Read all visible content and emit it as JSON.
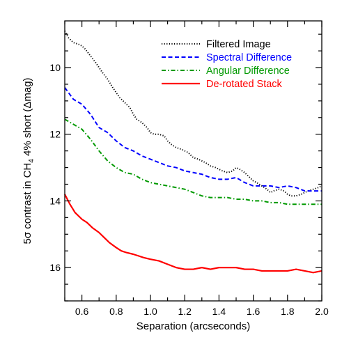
{
  "chart_data": {
    "type": "line",
    "xlabel": "Separation (arcseconds)",
    "ylabel": {
      "prefix": "5σ contrast in CH",
      "subscript": "4",
      "suffix": " 4% short (Δmag)"
    },
    "xlim": [
      0.5,
      2.0
    ],
    "ylim": [
      17.0,
      8.6
    ],
    "y_inverted": true,
    "xticks": [
      0.6,
      0.8,
      1.0,
      1.2,
      1.4,
      1.6,
      1.8,
      2.0
    ],
    "xtick_labels": [
      "0.6",
      "0.8",
      "1.0",
      "1.2",
      "1.4",
      "1.6",
      "1.8",
      "2.0"
    ],
    "yticks": [
      10,
      12,
      14,
      16
    ],
    "ytick_labels": [
      "10",
      "12",
      "14",
      "16"
    ],
    "grid": false,
    "legend_position": "top-right",
    "series": [
      {
        "name": "Filtered Image",
        "color": "#000000",
        "style": "dotted",
        "x": [
          0.5,
          0.52,
          0.55,
          0.58,
          0.6,
          0.62,
          0.65,
          0.68,
          0.7,
          0.72,
          0.75,
          0.78,
          0.8,
          0.82,
          0.85,
          0.88,
          0.9,
          0.92,
          0.95,
          0.98,
          1.0,
          1.02,
          1.05,
          1.08,
          1.1,
          1.12,
          1.15,
          1.18,
          1.2,
          1.22,
          1.25,
          1.28,
          1.3,
          1.32,
          1.35,
          1.38,
          1.4,
          1.42,
          1.45,
          1.48,
          1.5,
          1.52,
          1.55,
          1.58,
          1.6,
          1.62,
          1.65,
          1.68,
          1.7,
          1.72,
          1.75,
          1.78,
          1.8,
          1.82,
          1.85,
          1.88,
          1.9,
          1.92,
          1.95,
          1.98,
          2.0
        ],
        "values": [
          8.9,
          9.1,
          9.25,
          9.3,
          9.35,
          9.45,
          9.65,
          9.85,
          10.0,
          10.15,
          10.35,
          10.6,
          10.75,
          10.9,
          11.05,
          11.2,
          11.4,
          11.55,
          11.65,
          11.8,
          11.95,
          12.0,
          12.0,
          12.05,
          12.2,
          12.3,
          12.4,
          12.45,
          12.5,
          12.55,
          12.7,
          12.75,
          12.8,
          12.85,
          12.95,
          13.0,
          13.05,
          13.1,
          13.15,
          13.1,
          13.0,
          13.05,
          13.15,
          13.3,
          13.4,
          13.45,
          13.55,
          13.65,
          13.75,
          13.7,
          13.65,
          13.7,
          13.8,
          13.85,
          13.85,
          13.8,
          13.75,
          13.7,
          13.65,
          13.6,
          13.55
        ]
      },
      {
        "name": "Spectral Difference",
        "color": "#0000ff",
        "style": "dashed",
        "x": [
          0.5,
          0.55,
          0.6,
          0.65,
          0.7,
          0.75,
          0.8,
          0.85,
          0.9,
          0.95,
          1.0,
          1.05,
          1.1,
          1.15,
          1.2,
          1.25,
          1.3,
          1.35,
          1.4,
          1.45,
          1.5,
          1.55,
          1.6,
          1.65,
          1.7,
          1.75,
          1.8,
          1.85,
          1.9,
          1.95,
          2.0
        ],
        "values": [
          10.6,
          10.95,
          11.1,
          11.4,
          11.8,
          11.95,
          12.2,
          12.4,
          12.5,
          12.65,
          12.75,
          12.85,
          12.95,
          13.0,
          13.1,
          13.15,
          13.2,
          13.3,
          13.35,
          13.35,
          13.3,
          13.45,
          13.55,
          13.55,
          13.55,
          13.6,
          13.55,
          13.6,
          13.7,
          13.7,
          13.7
        ]
      },
      {
        "name": "Angular Difference",
        "color": "#009900",
        "style": "dashdot",
        "x": [
          0.5,
          0.55,
          0.6,
          0.65,
          0.7,
          0.75,
          0.8,
          0.85,
          0.9,
          0.95,
          1.0,
          1.05,
          1.1,
          1.15,
          1.2,
          1.25,
          1.3,
          1.35,
          1.4,
          1.45,
          1.5,
          1.55,
          1.6,
          1.65,
          1.7,
          1.75,
          1.8,
          1.85,
          1.9,
          1.95,
          2.0
        ],
        "values": [
          11.55,
          11.7,
          11.85,
          12.15,
          12.5,
          12.8,
          13.0,
          13.15,
          13.2,
          13.35,
          13.45,
          13.5,
          13.55,
          13.6,
          13.65,
          13.75,
          13.85,
          13.9,
          13.9,
          13.9,
          13.95,
          13.95,
          14.0,
          14.0,
          14.05,
          14.05,
          14.1,
          14.1,
          14.1,
          14.1,
          14.1
        ]
      },
      {
        "name": "De-rotated Stack",
        "color": "#ff0000",
        "style": "solid",
        "x": [
          0.5,
          0.53,
          0.56,
          0.6,
          0.63,
          0.66,
          0.7,
          0.73,
          0.76,
          0.8,
          0.83,
          0.86,
          0.9,
          0.93,
          0.96,
          1.0,
          1.05,
          1.1,
          1.15,
          1.2,
          1.25,
          1.3,
          1.35,
          1.4,
          1.45,
          1.5,
          1.55,
          1.6,
          1.65,
          1.7,
          1.75,
          1.8,
          1.85,
          1.9,
          1.95,
          2.0
        ],
        "values": [
          13.8,
          14.1,
          14.35,
          14.55,
          14.65,
          14.8,
          14.95,
          15.1,
          15.25,
          15.4,
          15.5,
          15.55,
          15.6,
          15.65,
          15.7,
          15.75,
          15.8,
          15.9,
          16.0,
          16.05,
          16.05,
          16.0,
          16.05,
          16.0,
          16.0,
          16.0,
          16.05,
          16.05,
          16.1,
          16.1,
          16.1,
          16.1,
          16.05,
          16.1,
          16.15,
          16.1
        ]
      }
    ]
  }
}
